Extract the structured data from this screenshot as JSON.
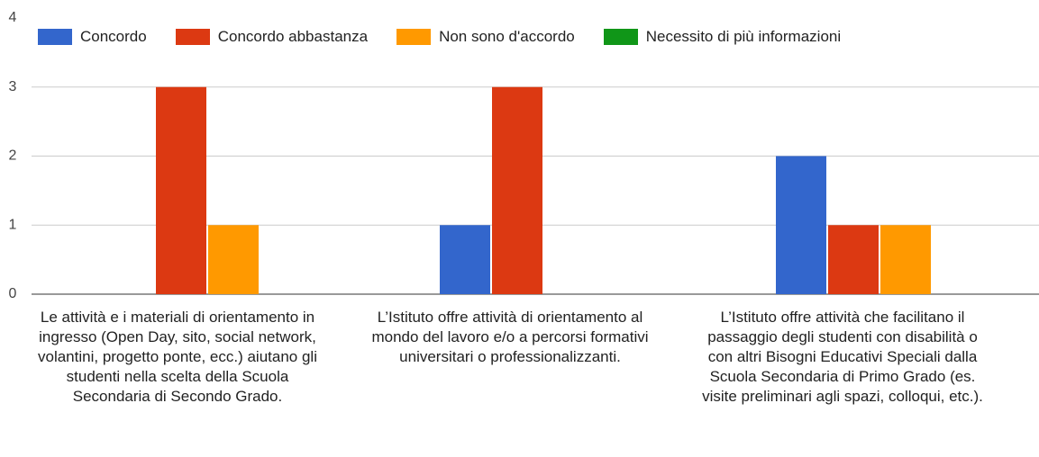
{
  "chart_data": {
    "type": "bar",
    "categories": [
      "Le attività e i materiali di orientamento in ingresso (Open Day, sito, social network, volantini, progetto ponte, ecc.) aiutano gli studenti nella scelta della Scuola Secondaria di Secondo Grado.",
      "L’Istituto offre attività di orientamento al mondo del lavoro e/o a percorsi formativi universitari o professionalizzanti.",
      "L’Istituto offre attività che facilitano il passaggio degli studenti con disabilità o con altri Bisogni Educativi Speciali dalla Scuola Secondaria di Primo Grado (es. visite preliminari agli spazi, colloqui, etc.)."
    ],
    "series": [
      {
        "name": "Concordo",
        "color": "#3366cc",
        "values": [
          0,
          1,
          2
        ]
      },
      {
        "name": "Concordo abbastanza",
        "color": "#dc3912",
        "values": [
          3,
          3,
          1
        ]
      },
      {
        "name": "Non sono d'accordo",
        "color": "#ff9900",
        "values": [
          1,
          0,
          1
        ]
      },
      {
        "name": "Necessito di più informazioni",
        "color": "#109618",
        "values": [
          0,
          0,
          0
        ]
      }
    ],
    "ylim": [
      0,
      4
    ],
    "yticks": [
      0,
      1,
      2,
      3,
      4
    ],
    "grid": true,
    "legend": "top"
  }
}
